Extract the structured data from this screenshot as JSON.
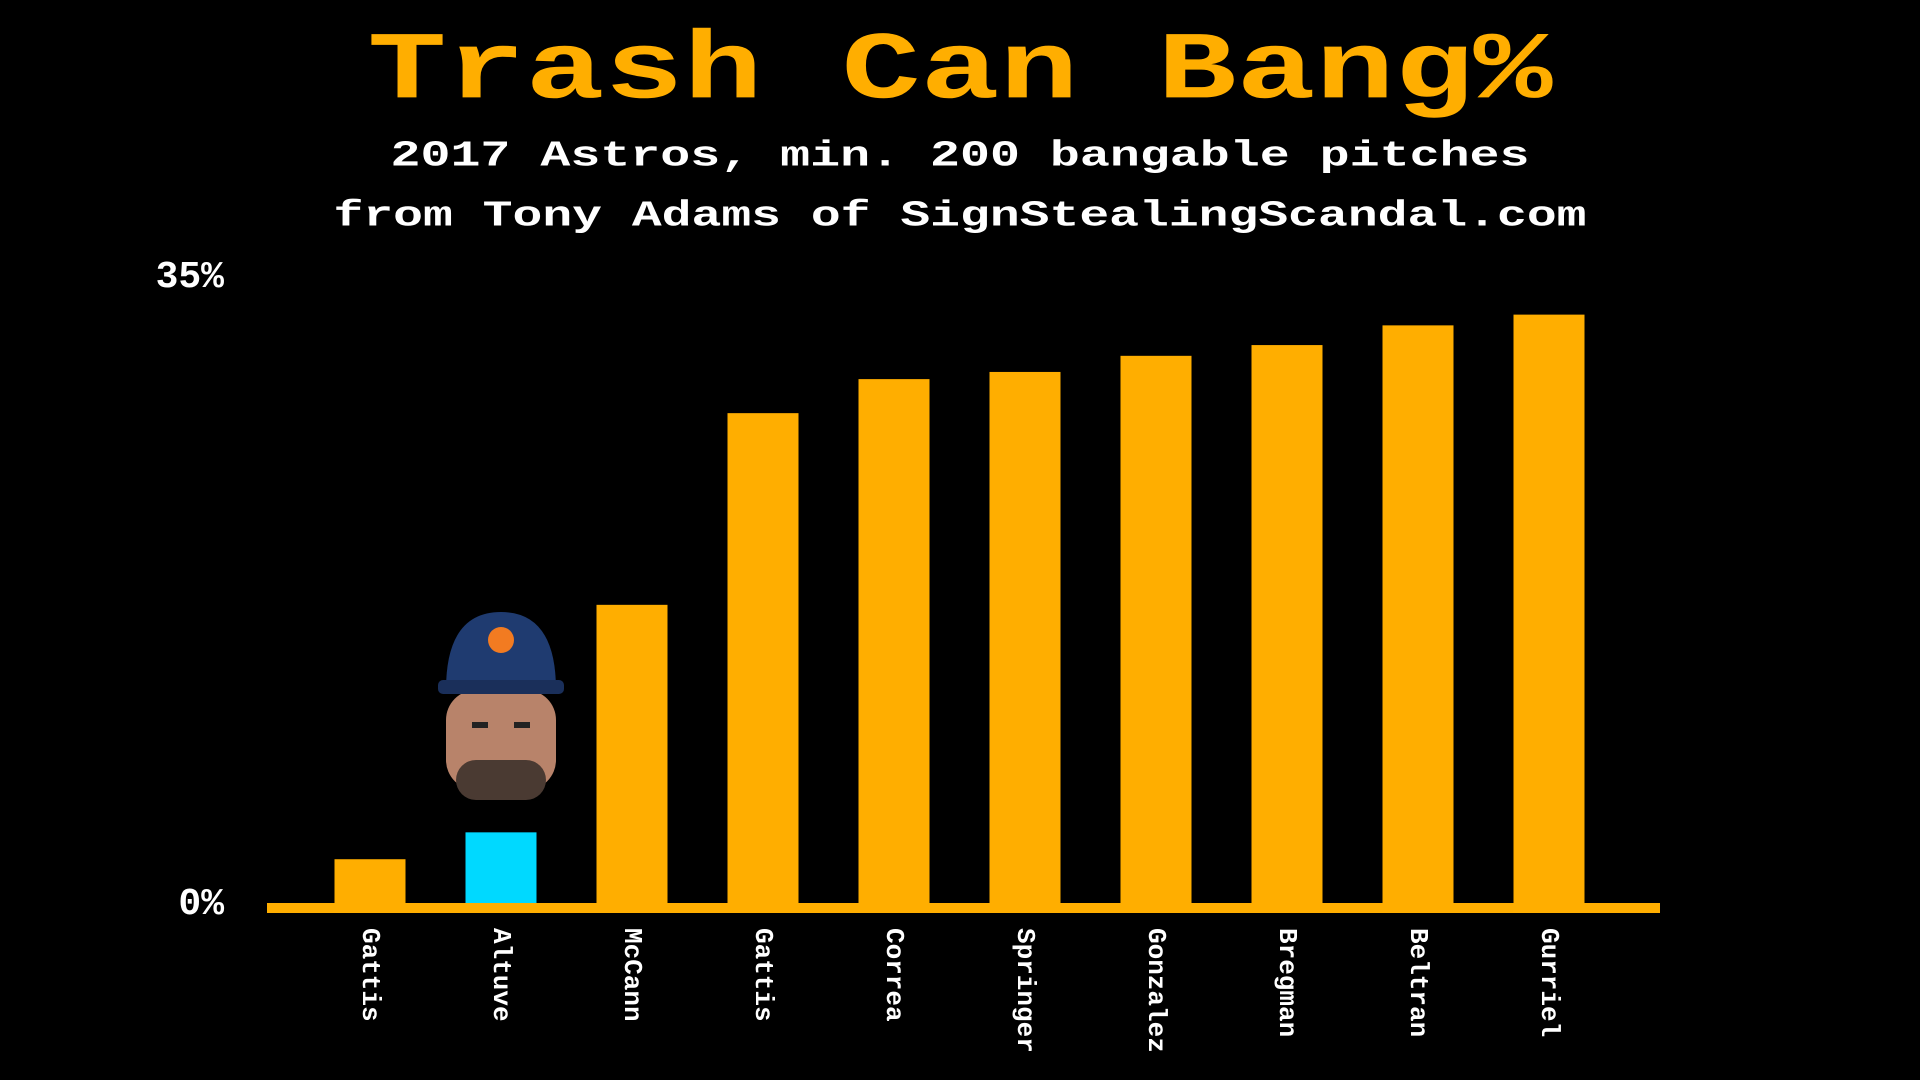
{
  "chart_data": {
    "type": "bar",
    "title": "Trash Can Bang%",
    "subtitle": [
      "2017 Astros, min. 200 bangable pitches",
      "from Tony Adams of SignStealingScandal.com"
    ],
    "categories": [
      "Gattis",
      "Altuve",
      "McCann",
      "Gattis",
      "Correa",
      "Springer",
      "Gonzalez",
      "Bregman",
      "Beltran",
      "Gurriel"
    ],
    "values": [
      2.5,
      4,
      16.7,
      27.4,
      29.3,
      29.7,
      30.6,
      31.2,
      32.3,
      32.9
    ],
    "colors": [
      "#ffae00",
      "#00d9ff",
      "#ffae00",
      "#ffae00",
      "#ffae00",
      "#ffae00",
      "#ffae00",
      "#ffae00",
      "#ffae00",
      "#ffae00"
    ],
    "axis_color": "#ffae00",
    "ylim": [
      0,
      35
    ],
    "yticks": [
      {
        "value": 0,
        "label": "0%"
      },
      {
        "value": 35,
        "label": "35%"
      }
    ],
    "grid": false
  }
}
